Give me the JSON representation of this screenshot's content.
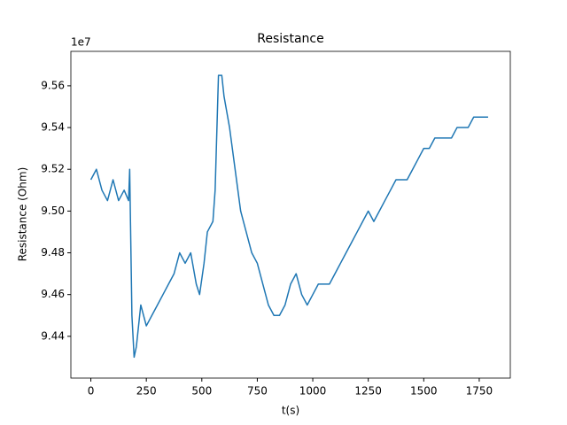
{
  "chart_data": {
    "type": "line",
    "title": "Resistance",
    "x_label": "t(s)",
    "y_label": "Resistance (Ohm)",
    "y_offset_label": "1e7",
    "x": [
      0,
      25,
      50,
      75,
      100,
      125,
      150,
      170,
      175,
      185,
      195,
      205,
      225,
      250,
      275,
      300,
      325,
      350,
      375,
      400,
      425,
      450,
      475,
      490,
      510,
      525,
      550,
      560,
      575,
      590,
      600,
      625,
      650,
      675,
      700,
      725,
      750,
      775,
      800,
      825,
      850,
      875,
      900,
      925,
      950,
      975,
      1000,
      1025,
      1050,
      1075,
      1100,
      1125,
      1150,
      1175,
      1200,
      1225,
      1250,
      1275,
      1300,
      1325,
      1350,
      1375,
      1400,
      1425,
      1450,
      1475,
      1500,
      1525,
      1550,
      1575,
      1600,
      1625,
      1650,
      1675,
      1700,
      1725,
      1750,
      1790
    ],
    "series": [
      {
        "name": "Resistance",
        "color": "#1f77b4",
        "values": [
          9.515,
          9.52,
          9.51,
          9.505,
          9.515,
          9.505,
          9.51,
          9.505,
          9.52,
          9.45,
          9.43,
          9.435,
          9.455,
          9.445,
          9.45,
          9.455,
          9.46,
          9.465,
          9.47,
          9.48,
          9.475,
          9.48,
          9.465,
          9.46,
          9.475,
          9.49,
          9.495,
          9.51,
          9.565,
          9.565,
          9.555,
          9.54,
          9.52,
          9.5,
          9.49,
          9.48,
          9.475,
          9.465,
          9.455,
          9.45,
          9.45,
          9.455,
          9.465,
          9.47,
          9.46,
          9.455,
          9.46,
          9.465,
          9.465,
          9.465,
          9.47,
          9.475,
          9.48,
          9.485,
          9.49,
          9.495,
          9.5,
          9.495,
          9.5,
          9.505,
          9.51,
          9.515,
          9.515,
          9.515,
          9.52,
          9.525,
          9.53,
          9.53,
          9.535,
          9.535,
          9.535,
          9.535,
          9.54,
          9.54,
          9.54,
          9.545,
          9.545,
          9.545
        ]
      }
    ],
    "xlim": [
      -90,
      1890
    ],
    "xticks": [
      0,
      250,
      500,
      750,
      1000,
      1250,
      1500,
      1750
    ],
    "ylim": [
      9.42,
      9.5765
    ],
    "yticks": [
      9.44,
      9.46,
      9.48,
      {
        "value": 9.5,
        "label": "9.50"
      },
      9.52,
      9.54,
      9.56
    ],
    "grid": false
  }
}
